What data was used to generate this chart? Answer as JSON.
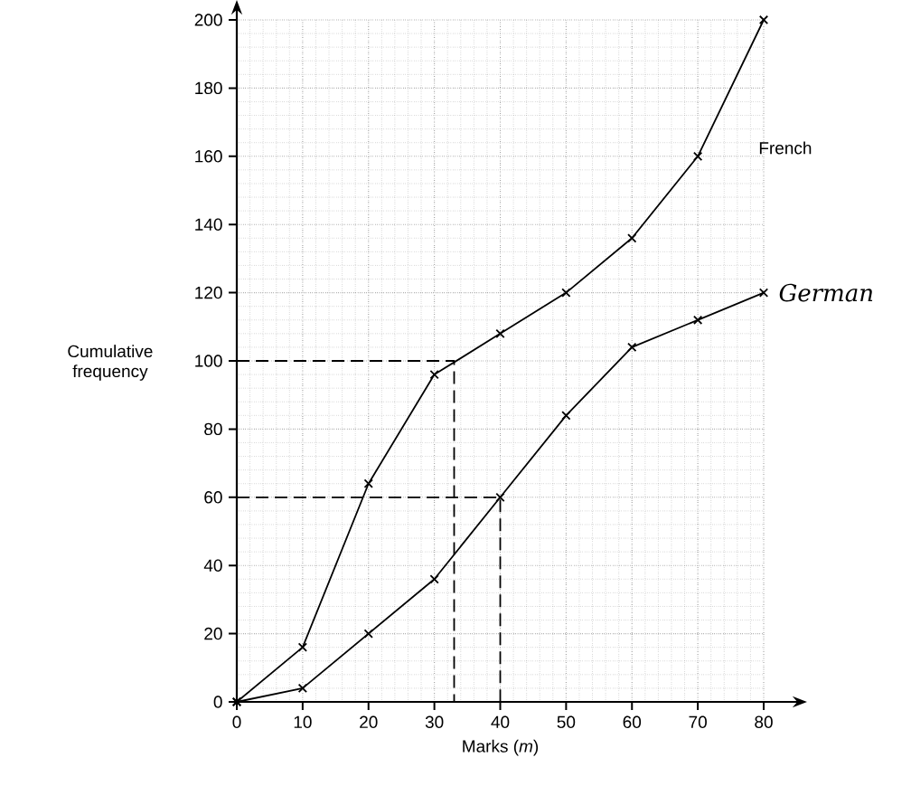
{
  "chart_data": {
    "type": "line",
    "xlabel": "Marks (*m*)",
    "ylabel": "Cumulative frequency",
    "x": [
      0,
      10,
      20,
      30,
      40,
      50,
      60,
      70,
      80
    ],
    "series": [
      {
        "name": "French",
        "color": "#000000",
        "values": [
          0,
          16,
          64,
          96,
          108,
          120,
          136,
          160,
          200
        ]
      },
      {
        "name": "German",
        "color": "#000000",
        "values": [
          0,
          4,
          20,
          36,
          60,
          84,
          104,
          112,
          120
        ]
      },
      {
        "color": "#000000",
        "x": [
          0,
          33,
          33
        ],
        "values": [
          100,
          100,
          0
        ],
        "line_style": "dashed",
        "marker": "none"
      },
      {
        "color": "#000000",
        "x": [
          0,
          40,
          40
        ],
        "values": [
          60,
          60,
          0
        ],
        "line_style": "dashed",
        "marker": "none"
      }
    ],
    "xlim": [
      0,
      80
    ],
    "ylim": [
      0,
      200
    ],
    "xticks": [
      0,
      10,
      20,
      30,
      40,
      50,
      60,
      70,
      80
    ],
    "yticks": [
      0,
      20,
      40,
      60,
      80,
      100,
      120,
      140,
      160,
      180,
      200
    ],
    "grid": true,
    "marker": "cross",
    "line_style": "solid"
  }
}
